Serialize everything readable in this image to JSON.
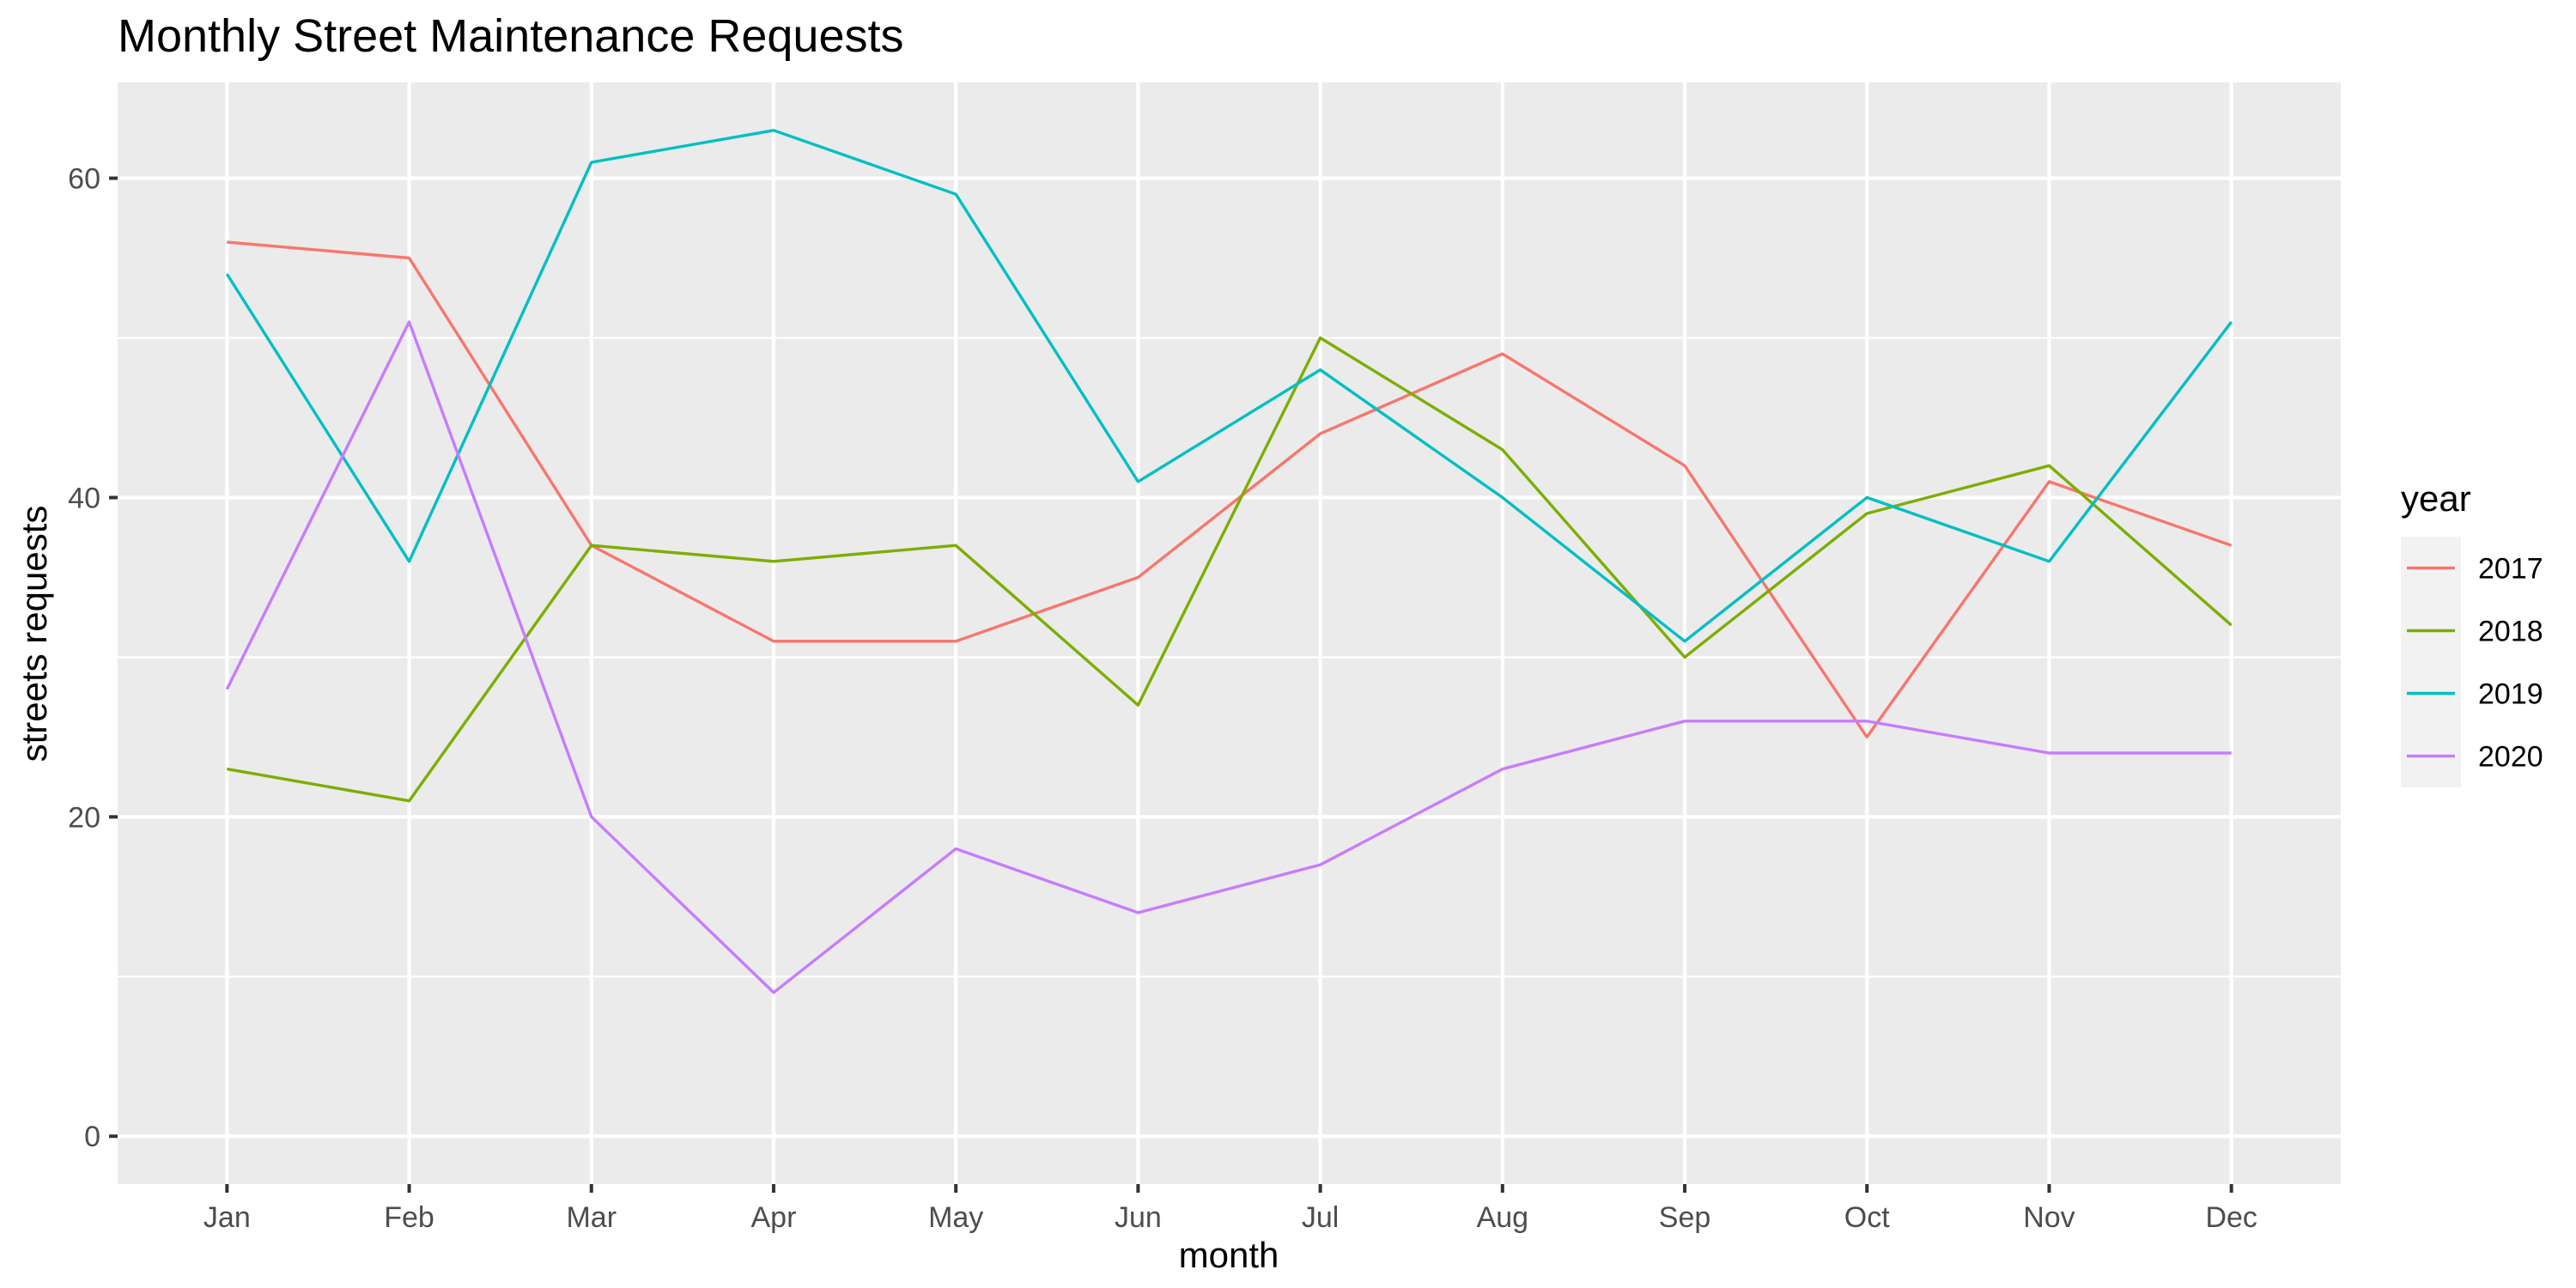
{
  "chart_data": {
    "type": "line",
    "title": "Monthly Street Maintenance Requests",
    "xlabel": "month",
    "ylabel": "streets requests",
    "categories": [
      "Jan",
      "Feb",
      "Mar",
      "Apr",
      "May",
      "Jun",
      "Jul",
      "Aug",
      "Sep",
      "Oct",
      "Nov",
      "Dec"
    ],
    "ylim": [
      -3,
      66
    ],
    "y_ticks": [
      0,
      20,
      40,
      60
    ],
    "grid": true,
    "legend": {
      "title": "year",
      "placement": "right"
    },
    "series": [
      {
        "name": "2017",
        "color": "#F8766D",
        "values": [
          56,
          55,
          37,
          31,
          31,
          35,
          44,
          49,
          42,
          25,
          41,
          37
        ]
      },
      {
        "name": "2018",
        "color": "#7CAE00",
        "values": [
          23,
          21,
          37,
          36,
          37,
          27,
          50,
          43,
          30,
          39,
          42,
          32
        ]
      },
      {
        "name": "2019",
        "color": "#00BFC4",
        "values": [
          54,
          36,
          61,
          63,
          59,
          41,
          48,
          40,
          31,
          40,
          36,
          51
        ]
      },
      {
        "name": "2020",
        "color": "#C77CFF",
        "values": [
          28,
          51,
          20,
          9,
          18,
          14,
          17,
          23,
          26,
          26,
          24,
          24
        ]
      }
    ]
  },
  "colors": {
    "panel_background": "#EBEBEB",
    "gridline": "#FFFFFF",
    "tick_label": "#4D4D4D",
    "legend_key_background": "#F2F2F2"
  }
}
